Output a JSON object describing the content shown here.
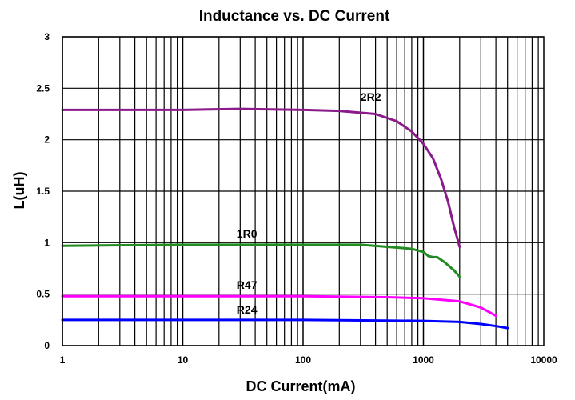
{
  "chart_data": {
    "type": "line",
    "title": "Inductance vs. DC Current",
    "xlabel": "DC Current(mA)",
    "ylabel": "L(uH)",
    "xscale": "log",
    "xlim": [
      1,
      10000
    ],
    "ylim": [
      0,
      3
    ],
    "grid": true,
    "legend": "none",
    "x_ticks": [
      "1",
      "10",
      "100",
      "1000",
      "10000"
    ],
    "y_ticks": [
      "0",
      "0.5",
      "1",
      "1.5",
      "2",
      "2.5",
      "3"
    ],
    "series": [
      {
        "name": "2R2",
        "color": "#8b1a8b",
        "points": [
          [
            1,
            2.29
          ],
          [
            10,
            2.29
          ],
          [
            30,
            2.3
          ],
          [
            100,
            2.29
          ],
          [
            200,
            2.28
          ],
          [
            400,
            2.25
          ],
          [
            600,
            2.18
          ],
          [
            800,
            2.08
          ],
          [
            1000,
            1.96
          ],
          [
            1200,
            1.82
          ],
          [
            1400,
            1.62
          ],
          [
            1600,
            1.4
          ],
          [
            1800,
            1.15
          ],
          [
            2000,
            0.96
          ]
        ],
        "label_x": 300,
        "label_y": 2.38
      },
      {
        "name": "1R0",
        "color": "#228b22",
        "points": [
          [
            1,
            0.97
          ],
          [
            10,
            0.98
          ],
          [
            100,
            0.98
          ],
          [
            300,
            0.98
          ],
          [
            500,
            0.96
          ],
          [
            800,
            0.94
          ],
          [
            1000,
            0.91
          ],
          [
            1100,
            0.87
          ],
          [
            1200,
            0.86
          ],
          [
            1300,
            0.86
          ],
          [
            1500,
            0.81
          ],
          [
            1800,
            0.73
          ],
          [
            2000,
            0.67
          ]
        ],
        "label_x": 28,
        "label_y": 1.05
      },
      {
        "name": "R47",
        "color": "#ff00ff",
        "points": [
          [
            1,
            0.48
          ],
          [
            10,
            0.48
          ],
          [
            100,
            0.48
          ],
          [
            500,
            0.47
          ],
          [
            1000,
            0.46
          ],
          [
            2000,
            0.43
          ],
          [
            3000,
            0.37
          ],
          [
            4000,
            0.29
          ]
        ],
        "label_x": 28,
        "label_y": 0.55
      },
      {
        "name": "R24",
        "color": "#0000ff",
        "points": [
          [
            1,
            0.25
          ],
          [
            10,
            0.25
          ],
          [
            100,
            0.25
          ],
          [
            1000,
            0.24
          ],
          [
            2000,
            0.23
          ],
          [
            3000,
            0.21
          ],
          [
            4000,
            0.19
          ],
          [
            5000,
            0.17
          ]
        ],
        "label_x": 28,
        "label_y": 0.31
      }
    ]
  }
}
